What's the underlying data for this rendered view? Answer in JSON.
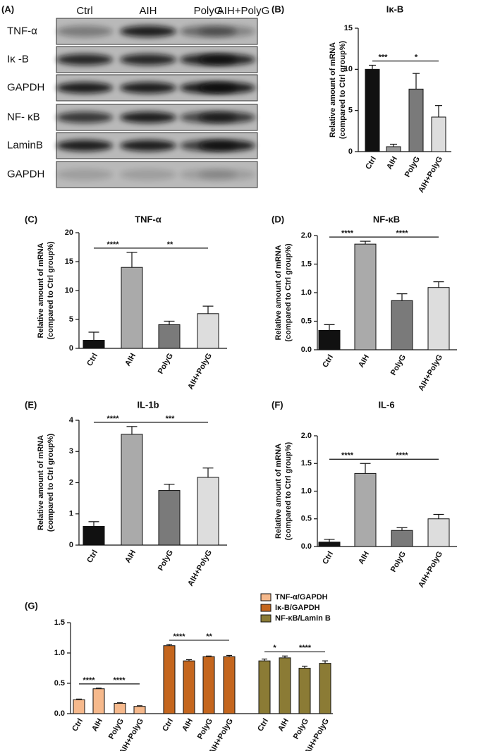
{
  "blot": {
    "panel": "(A)",
    "columns": [
      "Ctrl",
      "AIH",
      "PolyG",
      "AIH+PolyG"
    ],
    "rows": [
      "TNF-α",
      "Iκ -B",
      "GAPDH",
      "NF- κB",
      "LaminB",
      "GAPDH"
    ]
  },
  "chart_data": [
    {
      "type": "bar",
      "panel": "(B)",
      "title": "Iκ-B",
      "ylabel": [
        "Relative amount of mRNA",
        "(compared to Ctrl group%)"
      ],
      "categories": [
        "Ctrl",
        "AIH",
        "PolyG",
        "AIH+PolyG"
      ],
      "values": [
        10.0,
        0.6,
        7.6,
        4.2
      ],
      "errors": [
        0.5,
        0.3,
        1.9,
        1.4
      ],
      "colors": [
        "#111111",
        "#999999",
        "#7a7a7a",
        "#dddddd"
      ],
      "ylim": [
        0,
        15
      ],
      "yticks": [
        0,
        5,
        10,
        15
      ],
      "annotations": [
        "***",
        "*"
      ]
    },
    {
      "type": "bar",
      "panel": "(C)",
      "title": "TNF-α",
      "ylabel": [
        "Relative amount of mRNA",
        "(compared to Ctrl group%)"
      ],
      "categories": [
        "Ctrl",
        "AIH",
        "PolyG",
        "AIH+PolyG"
      ],
      "values": [
        1.4,
        14.0,
        4.1,
        6.0
      ],
      "errors": [
        1.4,
        2.6,
        0.6,
        1.3
      ],
      "colors": [
        "#111111",
        "#aaaaaa",
        "#7a7a7a",
        "#dddddd"
      ],
      "ylim": [
        0,
        20
      ],
      "yticks": [
        0,
        5,
        10,
        15,
        20
      ],
      "annotations": [
        "****",
        "**"
      ]
    },
    {
      "type": "bar",
      "panel": "(D)",
      "title": "NF-κB",
      "ylabel": [
        "Relative amount of mRNA",
        "(compared to Ctrl group%)"
      ],
      "categories": [
        "Ctrl",
        "AIH",
        "PolyG",
        "AIH+PolyG"
      ],
      "values": [
        0.34,
        1.85,
        0.86,
        1.09
      ],
      "errors": [
        0.1,
        0.05,
        0.12,
        0.1
      ],
      "colors": [
        "#111111",
        "#aaaaaa",
        "#7a7a7a",
        "#dddddd"
      ],
      "ylim": [
        0,
        2.0
      ],
      "yticks": [
        {
          "value": 0,
          "label": "0.0"
        },
        0.5,
        {
          "value": 1,
          "label": "1.0"
        },
        1.5,
        {
          "value": 2,
          "label": "2.0"
        }
      ],
      "annotations": [
        "****",
        "****"
      ]
    },
    {
      "type": "bar",
      "panel": "(E)",
      "title": "IL-1b",
      "ylabel": [
        "Relative amount of mRNA",
        "(compared to Ctrl group%)"
      ],
      "categories": [
        "Ctrl",
        "AIH",
        "PolyG",
        "AIH+PolyG"
      ],
      "values": [
        0.6,
        3.55,
        1.75,
        2.17
      ],
      "errors": [
        0.15,
        0.25,
        0.2,
        0.3
      ],
      "colors": [
        "#111111",
        "#aaaaaa",
        "#7a7a7a",
        "#dddddd"
      ],
      "ylim": [
        0,
        4
      ],
      "yticks": [
        0,
        1,
        2,
        3,
        4
      ],
      "annotations": [
        "****",
        "***"
      ]
    },
    {
      "type": "bar",
      "panel": "(F)",
      "title": "IL-6",
      "ylabel": [
        "Relative amount of mRNA",
        "(compared to Ctrl group%)"
      ],
      "categories": [
        "Ctrl",
        "AIH",
        "PolyG",
        "AIH+PolyG"
      ],
      "values": [
        0.08,
        1.32,
        0.29,
        0.5
      ],
      "errors": [
        0.05,
        0.18,
        0.05,
        0.08
      ],
      "colors": [
        "#111111",
        "#aaaaaa",
        "#7a7a7a",
        "#dddddd"
      ],
      "ylim": [
        0,
        2.0
      ],
      "yticks": [
        {
          "value": 0,
          "label": "0.0"
        },
        0.5,
        {
          "value": 1,
          "label": "1.0"
        },
        1.5,
        {
          "value": 2,
          "label": "2.0"
        }
      ],
      "annotations": [
        "****",
        "****"
      ]
    },
    {
      "type": "grouped_bar",
      "panel": "(G)",
      "categories": [
        "Ctrl",
        "AIH",
        "PolyG",
        "AIH+PolyG"
      ],
      "ylim": [
        0,
        1.5
      ],
      "yticks": [
        {
          "value": 0,
          "label": "0.0"
        },
        0.5,
        {
          "value": 1,
          "label": "1.0"
        },
        1.5
      ],
      "series": [
        {
          "name": "TNF-α/GAPDH",
          "color": "#f6b98c",
          "values": [
            0.23,
            0.41,
            0.17,
            0.12
          ],
          "errors": [
            0.01,
            0.01,
            0.01,
            0.01
          ],
          "annotations": [
            "****",
            "****"
          ]
        },
        {
          "name": "Iκ-B/GAPDH",
          "color": "#c4661e",
          "values": [
            1.12,
            0.87,
            0.94,
            0.94
          ],
          "errors": [
            0.02,
            0.02,
            0.01,
            0.02
          ],
          "annotations": [
            "****",
            "**"
          ]
        },
        {
          "name": "NF-κB/Lamin B",
          "color": "#8b7b35",
          "values": [
            0.87,
            0.92,
            0.75,
            0.83
          ],
          "errors": [
            0.03,
            0.03,
            0.03,
            0.04
          ],
          "annotations": [
            "*",
            "****"
          ]
        }
      ]
    }
  ]
}
